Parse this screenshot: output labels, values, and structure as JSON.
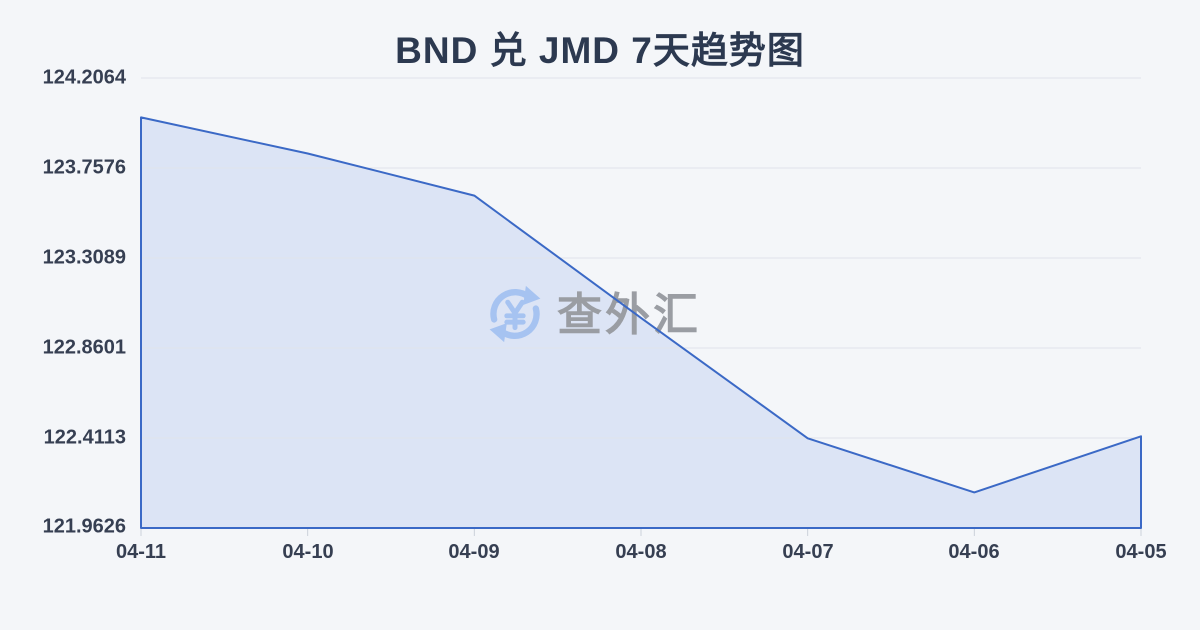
{
  "title": "BND 兑 JMD 7天趋势图",
  "watermark": {
    "text": "查外汇",
    "icon": "yen-refresh-icon",
    "icon_color": "#a6c3f1",
    "text_color": "#9a9da3"
  },
  "chart_data": {
    "type": "area",
    "title": "BND 兑 JMD 7天趋势图",
    "series_name": "BND/JMD",
    "categories": [
      "04-11",
      "04-10",
      "04-09",
      "04-08",
      "04-07",
      "04-06",
      "04-05"
    ],
    "values": [
      124.01,
      123.83,
      123.62,
      123.01,
      122.41,
      122.14,
      122.42
    ],
    "y_ticks": [
      "124.2064",
      "123.7576",
      "123.3089",
      "122.8601",
      "122.4113",
      "121.9626"
    ],
    "ylim": [
      121.9626,
      124.2064
    ],
    "xlabel": "",
    "ylabel": "",
    "grid": true,
    "legend": "none",
    "line_color": "#3b69c6",
    "fill_color": "#dce4f5",
    "grid_color": "#dfe3ea",
    "tick_color": "#ccd1da",
    "background": "#f4f6f9"
  }
}
